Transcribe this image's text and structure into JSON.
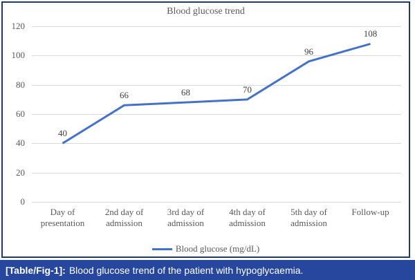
{
  "chart_data": {
    "type": "line",
    "title": "Blood glucose trend",
    "categories": [
      "Day of\npresentation",
      "2nd day of\nadmission",
      "3rd day of\nadmission",
      "4th day of\nadmission",
      "5th day of\nadmission",
      "Follow-up"
    ],
    "values": [
      40,
      66,
      68,
      70,
      96,
      108
    ],
    "legend": "Blood glucose (mg/dL)",
    "legend_position": "bottom",
    "ylim": [
      0,
      120
    ],
    "yticks": [
      0,
      20,
      40,
      60,
      80,
      100,
      120
    ],
    "grid": true,
    "line_color": "#4472c4",
    "gridline_color": "#d9d9d9",
    "text_color": "#595959",
    "data_label_color": "#404040"
  },
  "caption": {
    "tag": "[Table/Fig-1]:",
    "text": "Blood glucose trend of the patient with hypoglycaemia.",
    "background": "#27479e",
    "text_color": "#ffffff"
  },
  "figure": {
    "border_color": "#1e3a5f",
    "background": "#ffffff"
  }
}
